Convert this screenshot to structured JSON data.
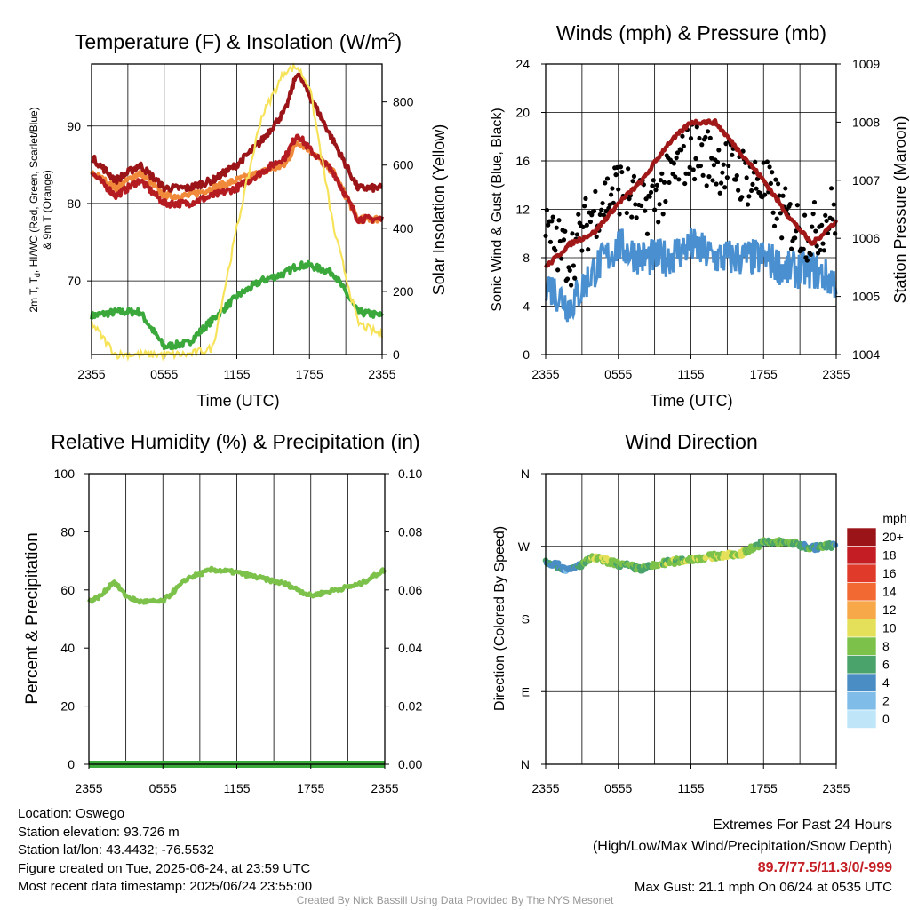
{
  "charts": {
    "temp": {
      "title_main": "Temperature (F) & Insolation (W/m",
      "title_sup": "2",
      "title_end": ")",
      "xlabel": "Time (UTC)",
      "ylabel_left_line1": "2m T, T",
      "ylabel_left_sub": "d",
      "ylabel_left_rest": ", HI/WC (Red, Green, Scarlet/Blue)",
      "ylabel_left_line2": "& 9m T (Orange)",
      "ylabel_right": "Solar Insolation (Yellow)",
      "x_ticks": [
        "2355",
        "0555",
        "1155",
        "1755",
        "2355"
      ],
      "y_left_ticks": [
        70,
        80,
        90
      ],
      "y_right_ticks": [
        0,
        200,
        400,
        600,
        800
      ]
    },
    "winds": {
      "title": "Winds (mph) & Pressure (mb)",
      "xlabel": "Time (UTC)",
      "ylabel_left": "Sonic Wind & Gust (Blue, Black)",
      "ylabel_right": "Station Pressure (Maroon)",
      "x_ticks": [
        "2355",
        "0555",
        "1155",
        "1755",
        "2355"
      ],
      "y_left_ticks": [
        0,
        4,
        8,
        12,
        16,
        20,
        24
      ],
      "y_right_ticks": [
        1004,
        1005,
        1006,
        1007,
        1008,
        1009
      ]
    },
    "rh": {
      "title": "Relative Humidity (%) & Precipitation (in)",
      "ylabel_left": "Percent & Precipitation",
      "x_ticks": [
        "2355",
        "0555",
        "1155",
        "1755",
        "2355"
      ],
      "y_left_ticks": [
        0,
        20,
        40,
        60,
        80,
        100
      ],
      "y_right_ticks": [
        "0.00",
        "0.02",
        "0.04",
        "0.06",
        "0.08",
        "0.10"
      ]
    },
    "dir": {
      "title": "Wind Direction",
      "ylabel_left": "Direction (Colored By Speed)",
      "x_ticks": [
        "2355",
        "0555",
        "1155",
        "1755",
        "2355"
      ],
      "y_ticks": [
        "N",
        "E",
        "S",
        "W",
        "N"
      ],
      "legend_title": "mph",
      "legend_labels": [
        "0",
        "2",
        "4",
        "6",
        "8",
        "10",
        "12",
        "14",
        "16",
        "18",
        "20+"
      ],
      "legend_colors": [
        "#bfe6f8",
        "#7fbde8",
        "#4a8dc4",
        "#4aa36a",
        "#7cc24a",
        "#e4e05a",
        "#f7a94a",
        "#f26a32",
        "#e03a2a",
        "#c41e24",
        "#9a1418"
      ]
    }
  },
  "colors": {
    "temp_2m": "#b51c22",
    "dewpoint": "#3aa83a",
    "hi_wc": "#e03a2a",
    "temp_9m": "#f08a3a",
    "solar": "#f7e35a",
    "max_temp": "#9a1418",
    "wind": "#4a90d0",
    "gust": "#000000",
    "pressure": "#a01818",
    "rh": "#7cc24a",
    "precip": "#3aa83a",
    "extremes": "#c41e24"
  },
  "chart_data": [
    {
      "type": "line",
      "title": "Temperature (F) & Insolation (W/m2)",
      "xlabel": "Time (UTC)",
      "ylabel": "2m T, Td, HI/WC (Red, Green, Scarlet/Blue) & 9m T (Orange)",
      "y2label": "Solar Insolation (Yellow)",
      "x_ticks": [
        "2355",
        "0555",
        "1155",
        "1755",
        "2355"
      ],
      "x": [
        0,
        2,
        4,
        6,
        8,
        10,
        12,
        14,
        16,
        17,
        18,
        20,
        22,
        24
      ],
      "ylim": [
        60.5,
        98
      ],
      "y2lim": [
        0,
        920
      ],
      "series": [
        {
          "values": [
            86,
            83,
            85,
            82,
            82,
            83,
            85,
            88,
            92,
            97,
            94,
            88,
            82,
            82
          ]
        },
        {
          "values": [
            84,
            81,
            83,
            80,
            80,
            81,
            82,
            84,
            86,
            89,
            87,
            84,
            78,
            78
          ]
        },
        {
          "values": [
            84,
            82,
            84,
            81,
            81,
            82,
            83,
            84,
            85,
            88,
            87,
            84,
            78,
            78
          ]
        },
        {
          "values": [
            65.5,
            66,
            66,
            61.5,
            62,
            65,
            68,
            70,
            71,
            72,
            72,
            71,
            66,
            65.5
          ]
        },
        {
          "values": [
            100,
            0,
            0,
            0,
            0,
            20,
            400,
            750,
            900,
            910,
            850,
            400,
            100,
            60
          ]
        }
      ]
    },
    {
      "type": "line",
      "title": "Winds (mph) & Pressure (mb)",
      "xlabel": "Time (UTC)",
      "ylabel": "Sonic Wind & Gust (Blue, Black)",
      "y2label": "Station Pressure (Maroon)",
      "x_ticks": [
        "2355",
        "0555",
        "1155",
        "1755",
        "2355"
      ],
      "x": [
        0,
        2,
        4,
        6,
        8,
        10,
        12,
        14,
        16,
        18,
        20,
        22,
        24
      ],
      "ylim": [
        0,
        24
      ],
      "y2lim": [
        1004,
        1009
      ],
      "series": [
        {
          "values": [
            6,
            4,
            7,
            9,
            8,
            8,
            9,
            8,
            8,
            8,
            7,
            7,
            6
          ]
        },
        {
          "values": [
            10,
            8,
            12,
            14,
            12,
            14,
            17,
            16,
            15,
            14,
            11,
            10,
            12
          ]
        },
        {
          "values": [
            1005.5,
            1005.9,
            1006.1,
            1006.6,
            1007.0,
            1007.6,
            1008.0,
            1008.0,
            1007.5,
            1007.0,
            1006.4,
            1005.9,
            1006.3
          ]
        }
      ]
    },
    {
      "type": "line",
      "title": "Relative Humidity (%) & Precipitation (in)",
      "ylabel": "Percent & Precipitation",
      "x_ticks": [
        "2355",
        "0555",
        "1155",
        "1755",
        "2355"
      ],
      "x": [
        0,
        1,
        2,
        3,
        4,
        6,
        8,
        10,
        12,
        14,
        16,
        18,
        20,
        22,
        24
      ],
      "ylim": [
        0,
        100
      ],
      "y2lim": [
        0,
        0.1
      ],
      "series": [
        {
          "values": [
            56,
            58,
            63,
            58,
            56,
            56,
            64,
            67,
            66,
            64,
            62,
            58,
            60,
            62,
            67
          ]
        },
        {
          "values": [
            0,
            0,
            0,
            0,
            0,
            0,
            0,
            0,
            0,
            0,
            0,
            0,
            0,
            0,
            0
          ]
        }
      ]
    },
    {
      "type": "scatter",
      "title": "Wind Direction",
      "ylabel": "Direction (Colored By Speed)",
      "x_ticks": [
        "2355",
        "0555",
        "1155",
        "1755",
        "2355"
      ],
      "y_ticks": [
        "N",
        "E",
        "S",
        "W",
        "N"
      ],
      "ylim": [
        0,
        360
      ],
      "x": [
        0,
        2,
        4,
        6,
        8,
        10,
        12,
        14,
        16,
        18,
        20,
        22,
        24
      ],
      "y": [
        252,
        240,
        256,
        248,
        242,
        250,
        254,
        258,
        260,
        275,
        275,
        268,
        272
      ],
      "speed": [
        5,
        4,
        9,
        8,
        7,
        8,
        8,
        9,
        9,
        7,
        7,
        6,
        6
      ],
      "legend_title": "mph"
    }
  ],
  "info": {
    "location": "Location: Oswego",
    "elevation": "Station elevation: 93.726 m",
    "latlon": "Station lat/lon: 43.4432; -76.5532",
    "created": "Figure created on Tue, 2025-06-24, at 23:59 UTC",
    "recent": "Most recent data timestamp: 2025/06/24 23:55:00"
  },
  "extremes": {
    "title": "Extremes For Past 24 Hours",
    "subtitle": "(High/Low/Max Wind/Precipitation/Snow Depth)",
    "values": "89.7/77.5/11.3/0/-999",
    "max_gust": "Max Gust: 21.1 mph On 06/24 at 0535 UTC"
  },
  "credit": "Created By Nick Bassill Using Data Provided By The NYS Mesonet"
}
